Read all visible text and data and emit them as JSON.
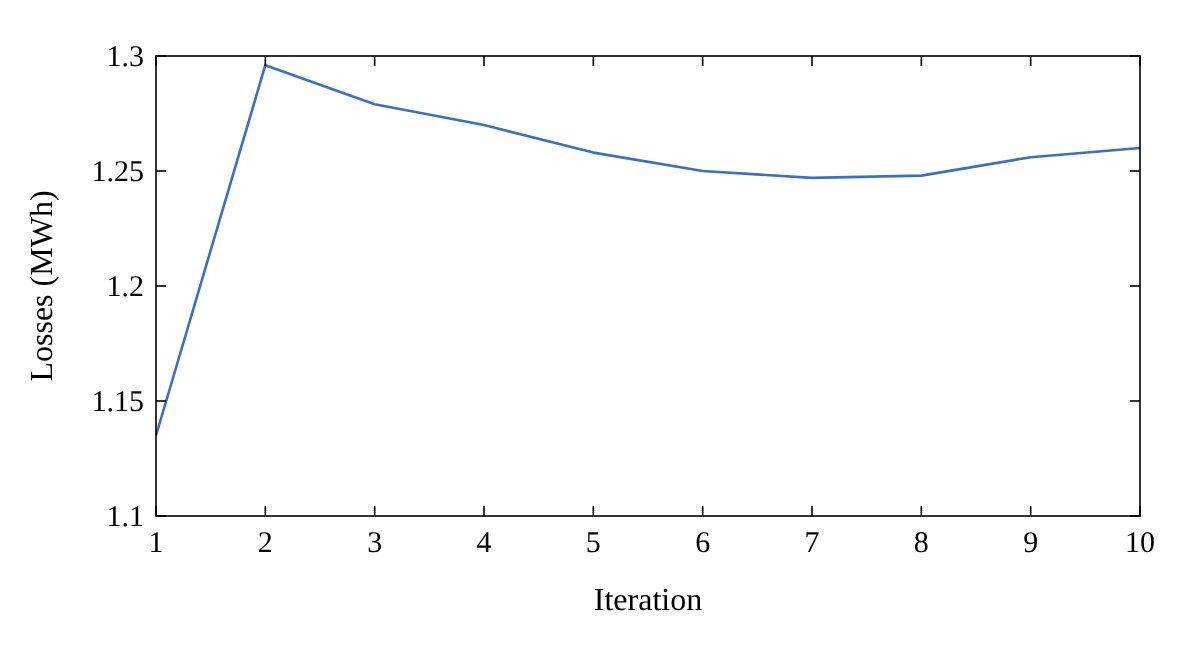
{
  "chart_data": {
    "type": "line",
    "xlabel": "Iteration",
    "ylabel": "Losses (MWh)",
    "x": [
      1,
      2,
      3,
      4,
      5,
      6,
      7,
      8,
      9,
      10
    ],
    "series": [
      {
        "color": "#3a6fc4",
        "values": [
          1.135,
          1.296,
          1.279,
          1.27,
          1.258,
          1.25,
          1.247,
          1.248,
          1.256,
          1.26
        ]
      }
    ],
    "xlim": [
      1,
      10
    ],
    "xticks": [
      1,
      2,
      3,
      4,
      5,
      6,
      7,
      8,
      9,
      10
    ],
    "ylim": [
      1.1,
      1.3
    ],
    "yticks": [
      1.1,
      1.15,
      1.2,
      1.25,
      1.3
    ],
    "grid": false,
    "marker": "none",
    "line_style": "solid"
  }
}
